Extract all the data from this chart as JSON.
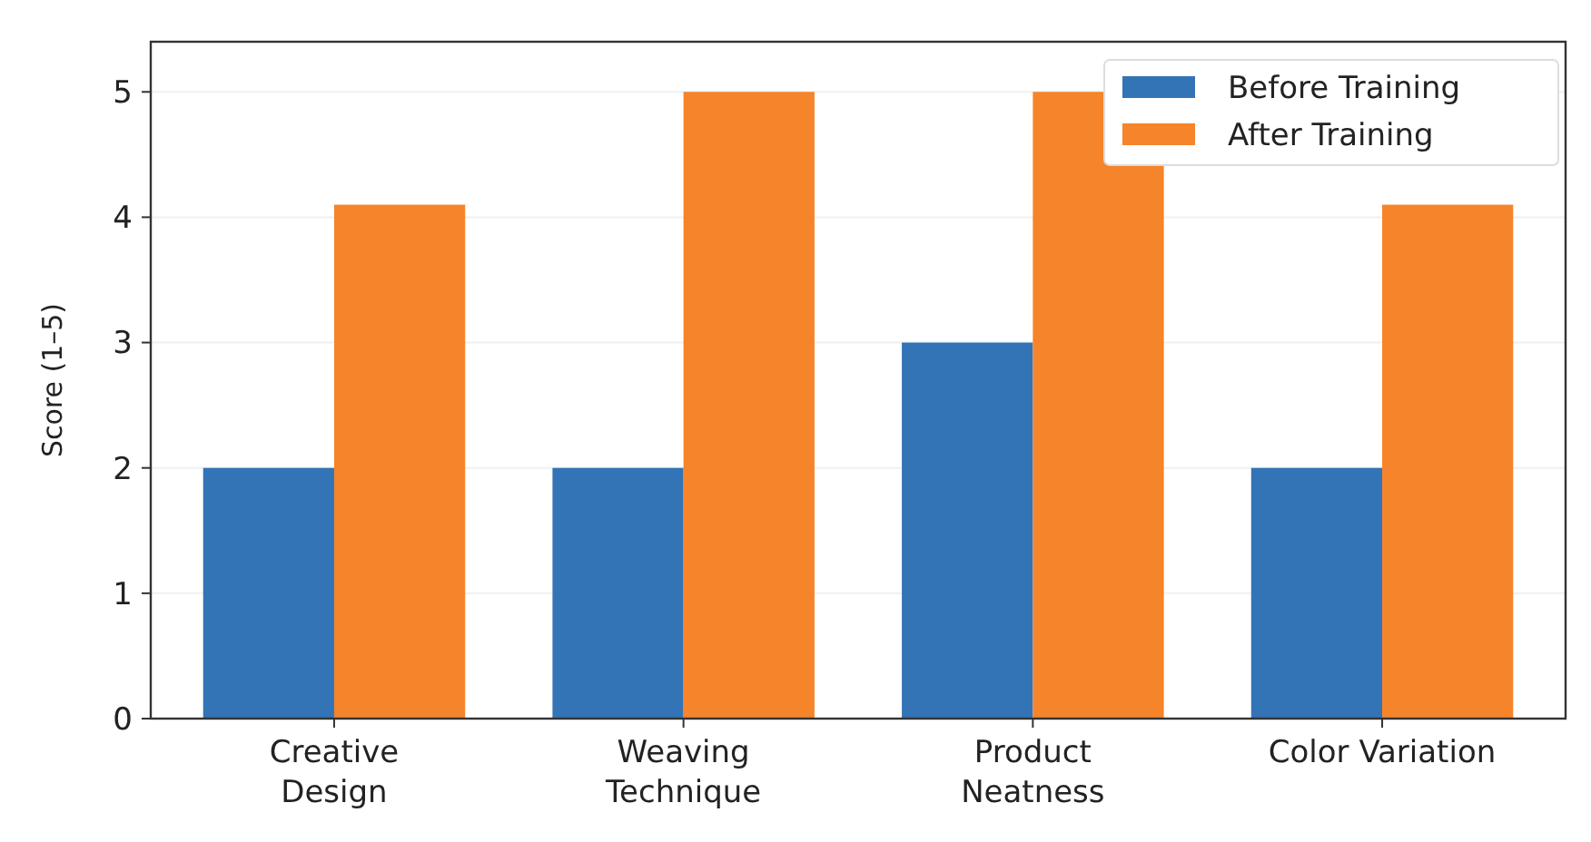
{
  "chart_data": {
    "type": "bar",
    "ylabel": "Score (1–5)",
    "categories": [
      "Creative\nDesign",
      "Weaving\nTechnique",
      "Product\nNeatness",
      "Color Variation"
    ],
    "series": [
      {
        "name": "Before Training",
        "color": "#3274b5",
        "values": [
          2,
          2,
          3,
          2
        ]
      },
      {
        "name": "After Training",
        "color": "#f5842a",
        "values": [
          4.1,
          5,
          5,
          4.1
        ]
      }
    ],
    "ylim": [
      0,
      5.4
    ],
    "yticks": [
      0,
      1,
      2,
      3,
      4,
      5
    ],
    "grid": "y",
    "legend": "top right"
  }
}
